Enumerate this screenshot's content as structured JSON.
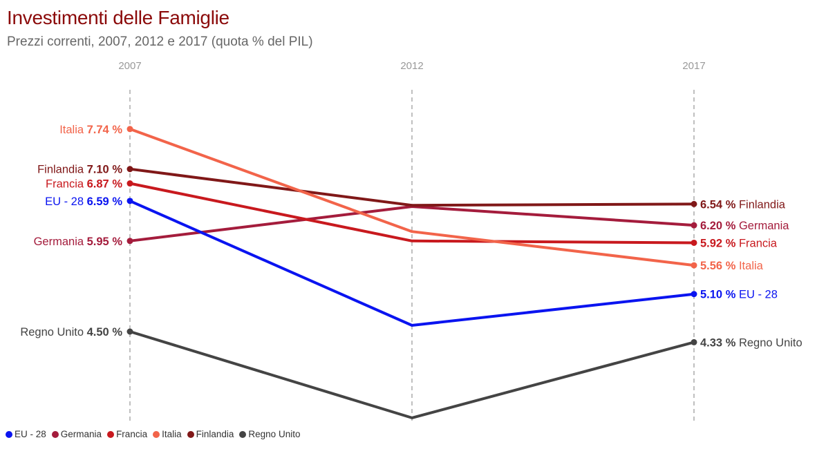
{
  "title": "Investimenti delle Famiglie",
  "subtitle": "Prezzi correnti, 2007, 2012 e 2017 (quota % del PIL)",
  "chart_data": {
    "type": "line",
    "title": "Investimenti delle Famiglie",
    "subtitle": "Prezzi correnti, 2007, 2012 e 2017 (quota % del PIL)",
    "x": [
      "2007",
      "2012",
      "2017"
    ],
    "ylim": [
      3.0,
      8.0
    ],
    "grid": "vertical dashed lines at each year",
    "legend_position": "bottom-left",
    "series": [
      {
        "name": "EU - 28",
        "color": "#0a14f0",
        "values": [
          6.59,
          4.6,
          5.1
        ],
        "start_label": "6.59 %",
        "end_label": "5.10 %"
      },
      {
        "name": "Germania",
        "color": "#a41c3c",
        "values": [
          5.95,
          6.5,
          6.2
        ],
        "start_label": "5.95 %",
        "end_label": "6.20 %"
      },
      {
        "name": "Francia",
        "color": "#c8191e",
        "values": [
          6.87,
          5.95,
          5.92
        ],
        "start_label": "6.87 %",
        "end_label": "5.92 %"
      },
      {
        "name": "Italia",
        "color": "#f2644a",
        "values": [
          7.74,
          6.1,
          5.56
        ],
        "start_label": "7.74 %",
        "end_label": "5.56 %"
      },
      {
        "name": "Finlandia",
        "color": "#801818",
        "values": [
          7.1,
          6.52,
          6.54
        ],
        "start_label": "7.10 %",
        "end_label": "6.54 %"
      },
      {
        "name": "Regno Unito",
        "color": "#444444",
        "values": [
          4.5,
          3.12,
          4.33
        ],
        "start_label": "4.50 %",
        "end_label": "4.33 %"
      }
    ]
  }
}
